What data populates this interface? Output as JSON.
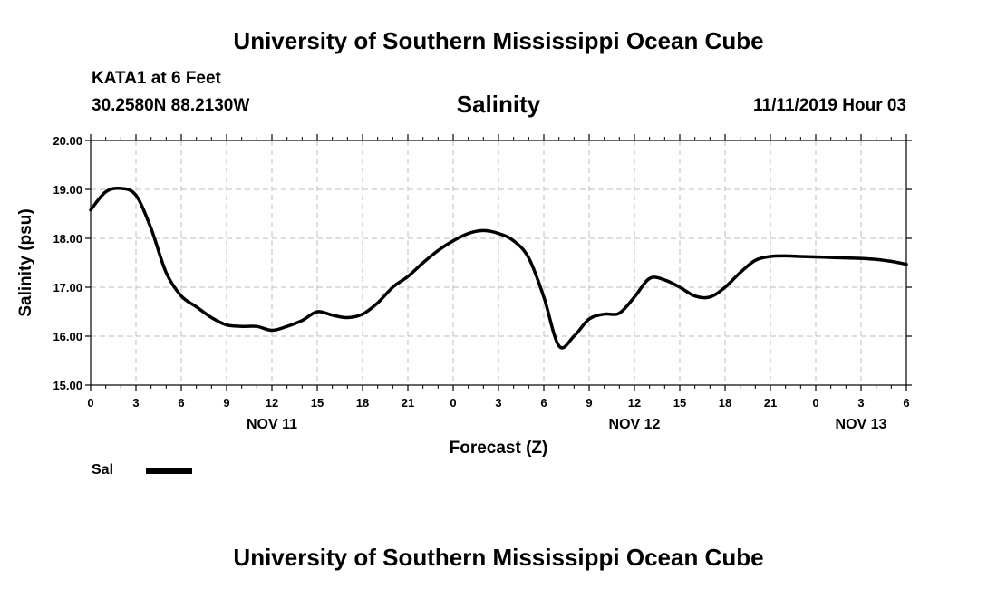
{
  "header": {
    "title": "University of Southern Mississippi Ocean Cube",
    "station": "KATA1 at 6 Feet",
    "location": "30.2580N 88.2130W",
    "datetime": "11/11/2019 Hour 03"
  },
  "footer": {
    "title": "University of Southern Mississippi Ocean Cube"
  },
  "chart_data": {
    "type": "line",
    "title": "Salinity",
    "xlabel": "Forecast (Z)",
    "ylabel": "Salinity (psu)",
    "ylim": [
      15.0,
      20.0
    ],
    "yticks": [
      "15.00",
      "16.00",
      "17.00",
      "18.00",
      "19.00",
      "20.00"
    ],
    "x_hour_range": [
      0,
      54
    ],
    "xticks": [
      "0",
      "3",
      "6",
      "9",
      "12",
      "15",
      "18",
      "21",
      "0",
      "3",
      "6",
      "9",
      "12",
      "15",
      "18",
      "21",
      "0",
      "3",
      "6"
    ],
    "day_labels": [
      {
        "label": "NOV 11",
        "hour": 12
      },
      {
        "label": "NOV 12",
        "hour": 36
      },
      {
        "label": "NOV 13",
        "hour": 51
      }
    ],
    "grid": true,
    "legend": "bottom-left",
    "series": [
      {
        "name": "Sal",
        "color": "#000000",
        "x": [
          0,
          1,
          2,
          3,
          4,
          5,
          6,
          7,
          8,
          9,
          10,
          11,
          12,
          13,
          14,
          15,
          16,
          17,
          18,
          19,
          20,
          21,
          22,
          23,
          24,
          25,
          26,
          27,
          28,
          29,
          30,
          31,
          32,
          33,
          34,
          35,
          36,
          37,
          38,
          39,
          40,
          41,
          42,
          43,
          44,
          45,
          46,
          47,
          48,
          49,
          50,
          51,
          52,
          53,
          54
        ],
        "values": [
          18.58,
          18.95,
          19.02,
          18.88,
          18.2,
          17.3,
          16.82,
          16.6,
          16.38,
          16.23,
          16.2,
          16.2,
          16.12,
          16.2,
          16.32,
          16.5,
          16.43,
          16.38,
          16.45,
          16.68,
          17.0,
          17.22,
          17.5,
          17.75,
          17.95,
          18.1,
          18.16,
          18.1,
          17.95,
          17.6,
          16.8,
          15.8,
          16.0,
          16.35,
          16.45,
          16.47,
          16.8,
          17.18,
          17.15,
          17.0,
          16.82,
          16.8,
          17.0,
          17.3,
          17.55,
          17.63,
          17.64,
          17.63,
          17.62,
          17.61,
          17.6,
          17.59,
          17.57,
          17.53,
          17.47
        ]
      }
    ]
  }
}
